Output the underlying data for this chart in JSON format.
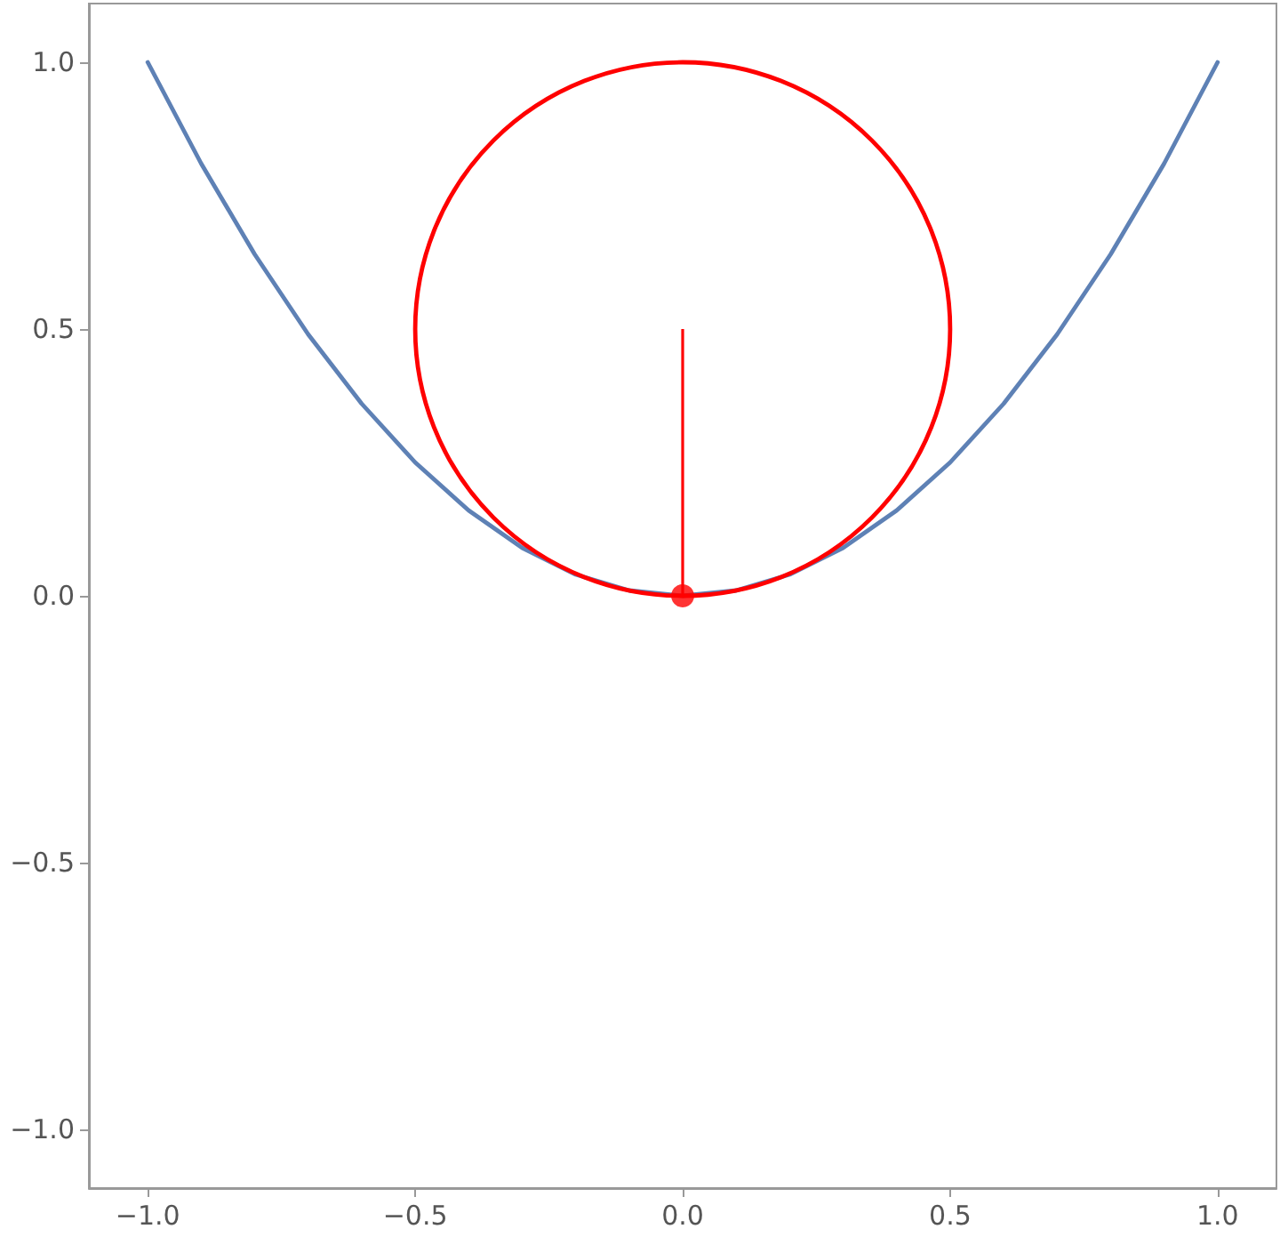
{
  "chart_data": {
    "type": "line",
    "xlim": [
      -1.11,
      1.11
    ],
    "ylim": [
      -1.11,
      1.11
    ],
    "xticks": [
      {
        "value": -1,
        "label": "−1.0"
      },
      {
        "value": -0.5,
        "label": "−0.5"
      },
      {
        "value": 0,
        "label": "0.0"
      },
      {
        "value": 0.5,
        "label": "0.5"
      },
      {
        "value": 1,
        "label": "1.0"
      }
    ],
    "yticks": [
      {
        "value": -1,
        "label": "−1.0"
      },
      {
        "value": -0.5,
        "label": "−0.5"
      },
      {
        "value": 0,
        "label": "0.0"
      },
      {
        "value": 0.5,
        "label": "0.5"
      },
      {
        "value": 1,
        "label": "1.0"
      }
    ],
    "grid": false,
    "series": [
      {
        "color": "#5e81b5",
        "x": [
          -1,
          -0.9,
          -0.8,
          -0.7,
          -0.6,
          -0.5,
          -0.4,
          -0.3,
          -0.2,
          -0.1,
          0,
          0.1,
          0.2,
          0.3,
          0.4,
          0.5,
          0.6,
          0.7,
          0.8,
          0.9,
          1
        ],
        "values": [
          1,
          0.81,
          0.64,
          0.49,
          0.36,
          0.25,
          0.16,
          0.09,
          0.04,
          0.01,
          0,
          0.01,
          0.04,
          0.09,
          0.16,
          0.25,
          0.36,
          0.49,
          0.64,
          0.81,
          1
        ]
      },
      {
        "type": "scatter",
        "color": "#ff0000",
        "marker": "circle",
        "x": [
          0
        ],
        "values": [
          0
        ],
        "errors": [
          [
            0,
            0.5
          ]
        ]
      }
    ]
  }
}
